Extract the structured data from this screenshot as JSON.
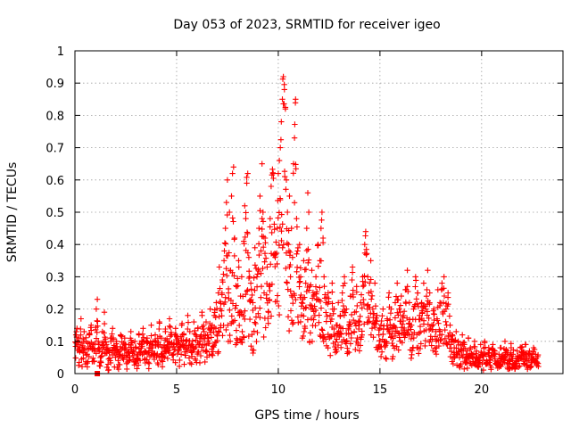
{
  "chart_data": {
    "type": "scatter",
    "title": "Day 053 of 2023, SRMTID for receiver igeo",
    "xlabel": "GPS time / hours",
    "ylabel": "SRMTID / TECUs",
    "xlim": [
      0,
      24
    ],
    "ylim": [
      0,
      1
    ],
    "xticks": [
      0,
      5,
      10,
      15,
      20
    ],
    "xtick_labels": [
      "0",
      "5",
      "10",
      "15",
      "20"
    ],
    "yticks": [
      0,
      0.1,
      0.2,
      0.3,
      0.4,
      0.5,
      0.6,
      0.7,
      0.8,
      0.9,
      1
    ],
    "ytick_labels": [
      "0",
      "0.1",
      "0.2",
      "0.3",
      "0.4",
      "0.5",
      "0.6",
      "0.7",
      "0.8",
      "0.9",
      "1"
    ],
    "grid": true,
    "marker": "plus",
    "color": "#ff0000",
    "series": [
      {
        "name": "SRMTID",
        "points": [
          [
            0.05,
            0.12
          ],
          [
            0.1,
            0.14
          ],
          [
            0.15,
            0.09
          ],
          [
            0.2,
            0.11
          ],
          [
            0.3,
            0.17
          ],
          [
            0.35,
            0.08
          ],
          [
            0.45,
            0.13
          ],
          [
            0.55,
            0.1
          ],
          [
            0.6,
            0.06
          ],
          [
            0.7,
            0.12
          ],
          [
            0.8,
            0.15
          ],
          [
            0.9,
            0.09
          ],
          [
            0.95,
            0.07
          ],
          [
            1.05,
            0.2
          ],
          [
            1.1,
            0.23
          ],
          [
            1.15,
            0.1
          ],
          [
            1.25,
            0.05
          ],
          [
            1.35,
            0.13
          ],
          [
            1.45,
            0.19
          ],
          [
            1.55,
            0.09
          ],
          [
            1.65,
            0.07
          ],
          [
            1.75,
            0.11
          ],
          [
            1.85,
            0.14
          ],
          [
            1.95,
            0.08
          ],
          [
            2.05,
            0.1
          ],
          [
            2.15,
            0.06
          ],
          [
            2.25,
            0.12
          ],
          [
            2.35,
            0.08
          ],
          [
            2.45,
            0.11
          ],
          [
            2.55,
            0.05
          ],
          [
            2.65,
            0.09
          ],
          [
            2.75,
            0.13
          ],
          [
            2.85,
            0.07
          ],
          [
            2.95,
            0.1
          ],
          [
            3.05,
            0.06
          ],
          [
            3.15,
            0.12
          ],
          [
            3.25,
            0.09
          ],
          [
            3.35,
            0.14
          ],
          [
            3.45,
            0.07
          ],
          [
            3.55,
            0.11
          ],
          [
            3.65,
            0.08
          ],
          [
            3.75,
            0.15
          ],
          [
            3.85,
            0.1
          ],
          [
            3.95,
            0.12
          ],
          [
            4.05,
            0.09
          ],
          [
            4.15,
            0.16
          ],
          [
            4.25,
            0.11
          ],
          [
            4.35,
            0.08
          ],
          [
            4.45,
            0.13
          ],
          [
            4.55,
            0.1
          ],
          [
            4.65,
            0.17
          ],
          [
            4.75,
            0.12
          ],
          [
            4.85,
            0.09
          ],
          [
            4.95,
            0.14
          ],
          [
            5.05,
            0.11
          ],
          [
            5.15,
            0.08
          ],
          [
            5.25,
            0.15
          ],
          [
            5.35,
            0.12
          ],
          [
            5.45,
            0.1
          ],
          [
            5.55,
            0.18
          ],
          [
            5.65,
            0.13
          ],
          [
            5.75,
            0.09
          ],
          [
            5.85,
            0.16
          ],
          [
            5.95,
            0.12
          ],
          [
            6.05,
            0.14
          ],
          [
            6.15,
            0.1
          ],
          [
            6.25,
            0.19
          ],
          [
            6.35,
            0.13
          ],
          [
            6.45,
            0.16
          ],
          [
            6.55,
            0.11
          ],
          [
            6.65,
            0.2
          ],
          [
            6.75,
            0.15
          ],
          [
            6.85,
            0.18
          ],
          [
            6.95,
            0.22
          ],
          [
            7.05,
            0.25
          ],
          [
            7.1,
            0.33
          ],
          [
            7.15,
            0.2
          ],
          [
            7.25,
            0.29
          ],
          [
            7.35,
            0.38
          ],
          [
            7.4,
            0.45
          ],
          [
            7.45,
            0.53
          ],
          [
            7.5,
            0.6
          ],
          [
            7.55,
            0.25
          ],
          [
            7.6,
            0.5
          ],
          [
            7.65,
            0.32
          ],
          [
            7.7,
            0.55
          ],
          [
            7.75,
            0.62
          ],
          [
            7.8,
            0.64
          ],
          [
            7.85,
            0.42
          ],
          [
            7.95,
            0.27
          ],
          [
            8.05,
            0.35
          ],
          [
            8.1,
            0.18
          ],
          [
            8.2,
            0.3
          ],
          [
            8.3,
            0.41
          ],
          [
            8.35,
            0.52
          ],
          [
            8.4,
            0.48
          ],
          [
            8.45,
            0.59
          ],
          [
            8.5,
            0.62
          ],
          [
            8.55,
            0.36
          ],
          [
            8.65,
            0.28
          ],
          [
            8.75,
            0.22
          ],
          [
            8.85,
            0.39
          ],
          [
            8.95,
            0.3
          ],
          [
            9.05,
            0.45
          ],
          [
            9.1,
            0.55
          ],
          [
            9.15,
            0.38
          ],
          [
            9.2,
            0.65
          ],
          [
            9.25,
            0.5
          ],
          [
            9.3,
            0.25
          ],
          [
            9.35,
            0.42
          ],
          [
            9.45,
            0.33
          ],
          [
            9.55,
            0.27
          ],
          [
            9.6,
            0.48
          ],
          [
            9.65,
            0.58
          ],
          [
            9.75,
            0.62
          ],
          [
            9.85,
            0.36
          ],
          [
            9.95,
            0.45
          ],
          [
            10.0,
            0.62
          ],
          [
            10.05,
            0.66
          ],
          [
            10.1,
            0.7
          ],
          [
            10.15,
            0.78
          ],
          [
            10.2,
            0.85
          ],
          [
            10.25,
            0.92
          ],
          [
            10.3,
            0.88
          ],
          [
            10.35,
            0.82
          ],
          [
            10.4,
            0.6
          ],
          [
            10.45,
            0.5
          ],
          [
            10.5,
            0.4
          ],
          [
            10.55,
            0.55
          ],
          [
            10.6,
            0.3
          ],
          [
            10.65,
            0.45
          ],
          [
            10.7,
            0.36
          ],
          [
            10.75,
            0.65
          ],
          [
            10.8,
            0.73
          ],
          [
            10.85,
            0.85
          ],
          [
            10.9,
            0.48
          ],
          [
            10.95,
            0.38
          ],
          [
            11.05,
            0.4
          ],
          [
            11.1,
            0.3
          ],
          [
            11.15,
            0.22
          ],
          [
            11.25,
            0.35
          ],
          [
            11.35,
            0.28
          ],
          [
            11.4,
            0.45
          ],
          [
            11.45,
            0.56
          ],
          [
            11.5,
            0.5
          ],
          [
            11.55,
            0.27
          ],
          [
            11.65,
            0.32
          ],
          [
            11.75,
            0.24
          ],
          [
            11.85,
            0.3
          ],
          [
            11.95,
            0.4
          ],
          [
            12.05,
            0.35
          ],
          [
            12.1,
            0.45
          ],
          [
            12.15,
            0.5
          ],
          [
            12.2,
            0.42
          ],
          [
            12.25,
            0.3
          ],
          [
            12.35,
            0.22
          ],
          [
            12.45,
            0.25
          ],
          [
            12.55,
            0.18
          ],
          [
            12.65,
            0.28
          ],
          [
            12.75,
            0.2
          ],
          [
            12.85,
            0.15
          ],
          [
            12.95,
            0.22
          ],
          [
            13.05,
            0.18
          ],
          [
            13.15,
            0.25
          ],
          [
            13.25,
            0.3
          ],
          [
            13.35,
            0.2
          ],
          [
            13.45,
            0.14
          ],
          [
            13.55,
            0.24
          ],
          [
            13.65,
            0.33
          ],
          [
            13.75,
            0.19
          ],
          [
            13.85,
            0.27
          ],
          [
            13.95,
            0.16
          ],
          [
            14.05,
            0.22
          ],
          [
            14.15,
            0.3
          ],
          [
            14.25,
            0.4
          ],
          [
            14.3,
            0.44
          ],
          [
            14.4,
            0.3
          ],
          [
            14.45,
            0.25
          ],
          [
            14.55,
            0.35
          ],
          [
            14.65,
            0.2
          ],
          [
            14.75,
            0.28
          ],
          [
            14.85,
            0.18
          ],
          [
            14.95,
            0.12
          ],
          [
            15.05,
            0.15
          ],
          [
            15.15,
            0.2
          ],
          [
            15.25,
            0.1
          ],
          [
            15.35,
            0.17
          ],
          [
            15.45,
            0.25
          ],
          [
            15.55,
            0.2
          ],
          [
            15.65,
            0.14
          ],
          [
            15.75,
            0.22
          ],
          [
            15.85,
            0.28
          ],
          [
            15.95,
            0.2
          ],
          [
            16.05,
            0.24
          ],
          [
            16.15,
            0.18
          ],
          [
            16.25,
            0.26
          ],
          [
            16.35,
            0.32
          ],
          [
            16.45,
            0.22
          ],
          [
            16.55,
            0.15
          ],
          [
            16.65,
            0.2
          ],
          [
            16.75,
            0.3
          ],
          [
            16.85,
            0.25
          ],
          [
            16.95,
            0.18
          ],
          [
            17.05,
            0.22
          ],
          [
            17.15,
            0.28
          ],
          [
            17.25,
            0.2
          ],
          [
            17.35,
            0.32
          ],
          [
            17.45,
            0.25
          ],
          [
            17.55,
            0.15
          ],
          [
            17.65,
            0.2
          ],
          [
            17.75,
            0.13
          ],
          [
            17.85,
            0.26
          ],
          [
            17.95,
            0.22
          ],
          [
            18.05,
            0.28
          ],
          [
            18.15,
            0.3
          ],
          [
            18.25,
            0.2
          ],
          [
            18.35,
            0.25
          ],
          [
            18.45,
            0.15
          ],
          [
            18.55,
            0.12
          ],
          [
            18.65,
            0.08
          ],
          [
            18.75,
            0.13
          ],
          [
            18.85,
            0.1
          ],
          [
            18.95,
            0.07
          ],
          [
            19.05,
            0.12
          ],
          [
            19.15,
            0.09
          ],
          [
            19.25,
            0.06
          ],
          [
            19.35,
            0.11
          ],
          [
            19.45,
            0.08
          ],
          [
            19.55,
            0.05
          ],
          [
            19.65,
            0.1
          ],
          [
            19.75,
            0.07
          ],
          [
            19.85,
            0.04
          ],
          [
            19.95,
            0.09
          ],
          [
            20.05,
            0.06
          ],
          [
            20.15,
            0.1
          ],
          [
            20.25,
            0.04
          ],
          [
            20.35,
            0.08
          ],
          [
            20.45,
            0.05
          ],
          [
            20.55,
            0.09
          ],
          [
            20.65,
            0.07
          ],
          [
            20.75,
            0.03
          ],
          [
            20.85,
            0.06
          ],
          [
            20.95,
            0.08
          ],
          [
            21.05,
            0.05
          ],
          [
            21.15,
            0.1
          ],
          [
            21.25,
            0.07
          ],
          [
            21.35,
            0.04
          ],
          [
            21.45,
            0.08
          ],
          [
            21.55,
            0.06
          ],
          [
            21.65,
            0.03
          ],
          [
            21.75,
            0.07
          ],
          [
            21.85,
            0.05
          ],
          [
            21.95,
            0.08
          ],
          [
            22.05,
            0.06
          ],
          [
            22.15,
            0.09
          ],
          [
            22.25,
            0.04
          ],
          [
            22.35,
            0.07
          ],
          [
            22.45,
            0.05
          ],
          [
            22.55,
            0.08
          ],
          [
            22.65,
            0.06
          ]
        ],
        "band_range": [
          0,
          22.8
        ],
        "band_sample_count": 1400
      }
    ],
    "special_points": [
      {
        "marker": "square",
        "x": 1.1,
        "y": 0.0
      }
    ]
  }
}
